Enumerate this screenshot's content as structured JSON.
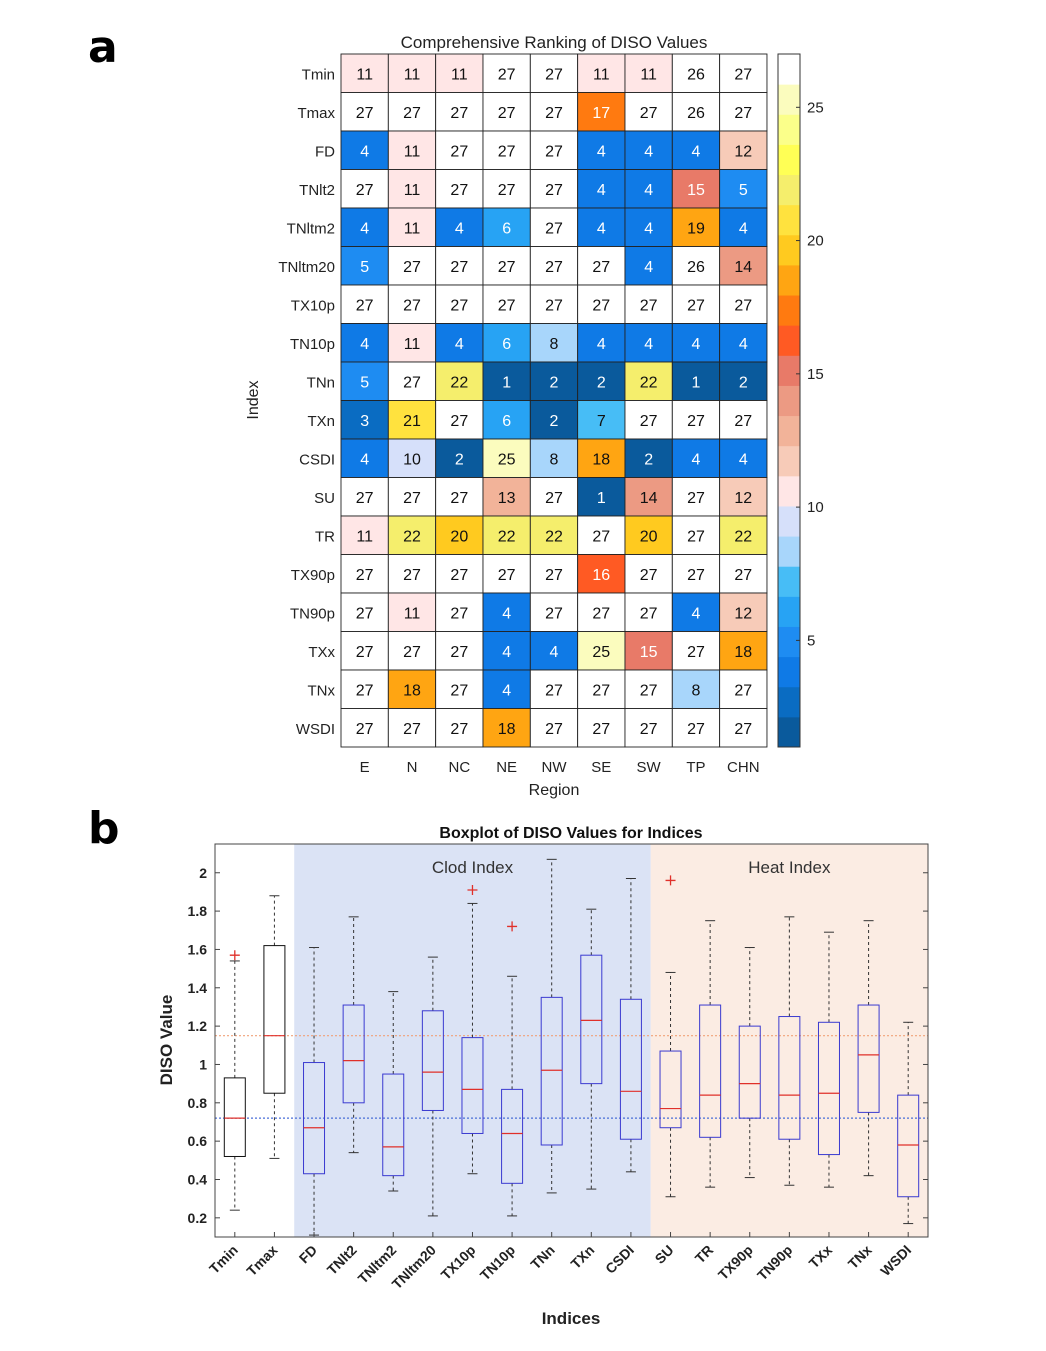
{
  "panel_labels": {
    "a": "a",
    "b": "b"
  },
  "chart_data": [
    {
      "type": "heatmap",
      "title": "Comprehensive Ranking of DISO Values",
      "xlabel": "Region",
      "ylabel": "Index",
      "regions": [
        "E",
        "N",
        "NC",
        "NE",
        "NW",
        "SE",
        "SW",
        "TP",
        "CHN"
      ],
      "indices": [
        "Tmin",
        "Tmax",
        "FD",
        "TNlt2",
        "TNltm2",
        "TNltm20",
        "TX10p",
        "TN10p",
        "TNn",
        "TXn",
        "CSDI",
        "SU",
        "TR",
        "TX90p",
        "TN90p",
        "TXx",
        "TNx",
        "WSDI"
      ],
      "values": [
        [
          11,
          11,
          11,
          27,
          27,
          11,
          11,
          26,
          27
        ],
        [
          27,
          27,
          27,
          27,
          27,
          17,
          27,
          26,
          27
        ],
        [
          4,
          11,
          27,
          27,
          27,
          4,
          4,
          4,
          12
        ],
        [
          27,
          11,
          27,
          27,
          27,
          4,
          4,
          15,
          5
        ],
        [
          4,
          11,
          4,
          6,
          27,
          4,
          4,
          19,
          4
        ],
        [
          5,
          27,
          27,
          27,
          27,
          27,
          4,
          26,
          14
        ],
        [
          27,
          27,
          27,
          27,
          27,
          27,
          27,
          27,
          27
        ],
        [
          4,
          11,
          4,
          6,
          8,
          4,
          4,
          4,
          4
        ],
        [
          5,
          27,
          22,
          1,
          2,
          2,
          22,
          1,
          2
        ],
        [
          3,
          21,
          27,
          6,
          2,
          7,
          27,
          27,
          27
        ],
        [
          4,
          10,
          2,
          25,
          8,
          18,
          2,
          4,
          4
        ],
        [
          27,
          27,
          27,
          13,
          27,
          1,
          14,
          27,
          12
        ],
        [
          11,
          22,
          20,
          22,
          22,
          27,
          20,
          27,
          22
        ],
        [
          27,
          27,
          27,
          27,
          27,
          16,
          27,
          27,
          27
        ],
        [
          27,
          11,
          27,
          4,
          27,
          27,
          27,
          4,
          12
        ],
        [
          27,
          27,
          27,
          4,
          4,
          25,
          15,
          27,
          18
        ],
        [
          27,
          18,
          27,
          4,
          27,
          27,
          27,
          8,
          27
        ],
        [
          27,
          27,
          27,
          18,
          27,
          27,
          27,
          27,
          27
        ]
      ],
      "colorbar": {
        "min": 1,
        "max": 27,
        "ticks": [
          5,
          10,
          15,
          20,
          25
        ],
        "colors": [
          "#0a5a9c",
          "#0a6cc2",
          "#0f7ae6",
          "#1e8cf2",
          "#27a3f4",
          "#47bdf6",
          "#a8d6fb",
          "#d6e0fa",
          "#ffe6e6",
          "#f7cbb8",
          "#f2b399",
          "#ec9a83",
          "#e87a68",
          "#ff5a23",
          "#ff7a10",
          "#ffa512",
          "#ffca1f",
          "#ffe23e",
          "#f5ee6c",
          "#ffff55",
          "#fbff8a",
          "#fbfcbe",
          "#ffffff"
        ]
      }
    },
    {
      "type": "box",
      "title": "Boxplot of DISO Values for Indices",
      "xlabel": "Indices",
      "ylabel": "DISO Value",
      "ylim": [
        0.1,
        2.15
      ],
      "yticks": [
        0.2,
        0.4,
        0.6,
        0.8,
        1,
        1.2,
        1.4,
        1.6,
        1.8,
        2
      ],
      "ytick_labels": [
        "0.2",
        "0.4",
        "0.6",
        "0.8",
        "1",
        "1.2",
        "1.4",
        "1.6",
        "1.8",
        "2"
      ],
      "reference_lines": [
        {
          "value": 1.15,
          "color": "#f1a27a"
        },
        {
          "value": 0.72,
          "color": "#4a6fd8"
        }
      ],
      "regions": [
        {
          "label": "Clod Index",
          "from_index": 2,
          "to_index": 10,
          "color": "#dbe3f5"
        },
        {
          "label": "Heat Index",
          "from_index": 11,
          "to_index": 17,
          "color": "#fbece3"
        }
      ],
      "boxes": [
        {
          "name": "Tmin",
          "min": 0.24,
          "q1": 0.52,
          "median": 0.72,
          "q3": 0.93,
          "max": 1.54,
          "outliers": [
            1.57
          ]
        },
        {
          "name": "Tmax",
          "min": 0.51,
          "q1": 0.85,
          "median": 1.15,
          "q3": 1.62,
          "max": 1.88,
          "outliers": []
        },
        {
          "name": "FD",
          "min": 0.11,
          "q1": 0.43,
          "median": 0.67,
          "q3": 1.01,
          "max": 1.61,
          "outliers": []
        },
        {
          "name": "TNlt2",
          "min": 0.54,
          "q1": 0.8,
          "median": 1.02,
          "q3": 1.31,
          "max": 1.77,
          "outliers": []
        },
        {
          "name": "TNltm2",
          "min": 0.34,
          "q1": 0.42,
          "median": 0.57,
          "q3": 0.95,
          "max": 1.38,
          "outliers": []
        },
        {
          "name": "TNltm20",
          "min": 0.21,
          "q1": 0.76,
          "median": 0.96,
          "q3": 1.28,
          "max": 1.56,
          "outliers": []
        },
        {
          "name": "TX10p",
          "min": 0.43,
          "q1": 0.64,
          "median": 0.87,
          "q3": 1.14,
          "max": 1.84,
          "outliers": [
            1.91
          ]
        },
        {
          "name": "TN10p",
          "min": 0.21,
          "q1": 0.38,
          "median": 0.64,
          "q3": 0.87,
          "max": 1.46,
          "outliers": [
            1.72
          ]
        },
        {
          "name": "TNn",
          "min": 0.33,
          "q1": 0.58,
          "median": 0.97,
          "q3": 1.35,
          "max": 2.07,
          "outliers": []
        },
        {
          "name": "TXn",
          "min": 0.35,
          "q1": 0.9,
          "median": 1.23,
          "q3": 1.57,
          "max": 1.81,
          "outliers": []
        },
        {
          "name": "CSDI",
          "min": 0.44,
          "q1": 0.61,
          "median": 0.86,
          "q3": 1.34,
          "max": 1.97,
          "outliers": []
        },
        {
          "name": "SU",
          "min": 0.31,
          "q1": 0.67,
          "median": 0.77,
          "q3": 1.07,
          "max": 1.48,
          "outliers": [
            1.96
          ]
        },
        {
          "name": "TR",
          "min": 0.36,
          "q1": 0.62,
          "median": 0.84,
          "q3": 1.31,
          "max": 1.75,
          "outliers": []
        },
        {
          "name": "TX90p",
          "min": 0.41,
          "q1": 0.72,
          "median": 0.9,
          "q3": 1.2,
          "max": 1.61,
          "outliers": []
        },
        {
          "name": "TN90p",
          "min": 0.37,
          "q1": 0.61,
          "median": 0.84,
          "q3": 1.25,
          "max": 1.77,
          "outliers": []
        },
        {
          "name": "TXx",
          "min": 0.36,
          "q1": 0.53,
          "median": 0.85,
          "q3": 1.22,
          "max": 1.69,
          "outliers": []
        },
        {
          "name": "TNx",
          "min": 0.42,
          "q1": 0.75,
          "median": 1.05,
          "q3": 1.31,
          "max": 1.75,
          "outliers": []
        },
        {
          "name": "WSDI",
          "min": 0.17,
          "q1": 0.31,
          "median": 0.58,
          "q3": 0.84,
          "max": 1.22,
          "outliers": []
        }
      ],
      "colors": {
        "box_default": "#3a3ad0",
        "box_first_two": "#111111",
        "median": "#e0302a",
        "whisker": "#333333",
        "outlier": "#e0302a"
      }
    }
  ]
}
